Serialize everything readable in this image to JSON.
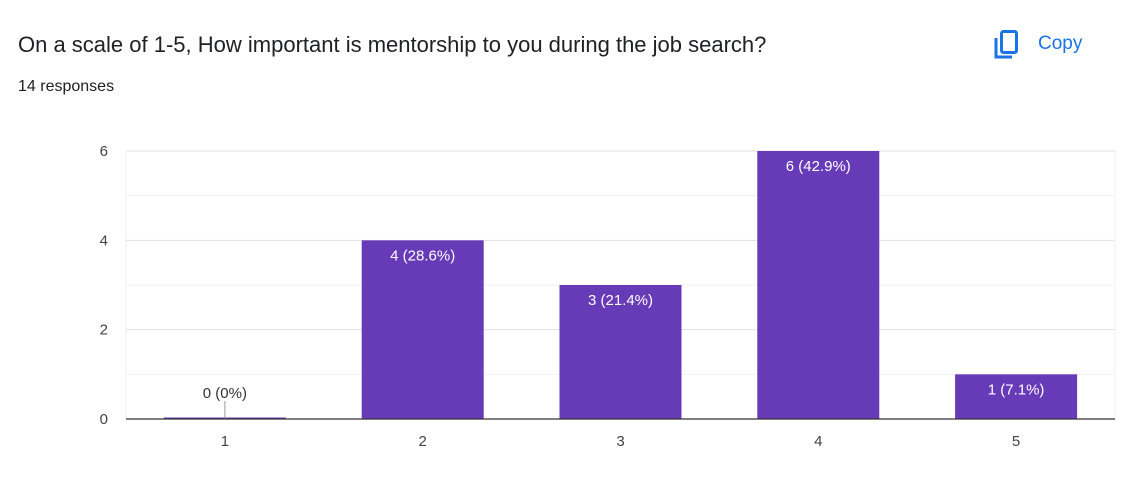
{
  "question": {
    "title": "On a scale of 1-5, How important is mentorship to you during the job search?",
    "responses": "14 responses"
  },
  "toolbar": {
    "copy_label": "Copy",
    "copy_icon": "copy-icon"
  },
  "colors": {
    "bar": "#673ab7",
    "accent": "#1a73e8",
    "grid": "#e0e0e0",
    "axis": "#333333"
  },
  "chart_data": {
    "type": "bar",
    "categories": [
      "1",
      "2",
      "3",
      "4",
      "5"
    ],
    "values": [
      0,
      4,
      3,
      6,
      1
    ],
    "data_labels": [
      "0 (0%)",
      "4 (28.6%)",
      "3 (21.4%)",
      "6 (42.9%)",
      "1 (7.1%)"
    ],
    "yticks": [
      0,
      2,
      4,
      6
    ],
    "ylim": [
      0,
      6
    ],
    "grid": true,
    "title": "",
    "xlabel": "",
    "ylabel": ""
  }
}
